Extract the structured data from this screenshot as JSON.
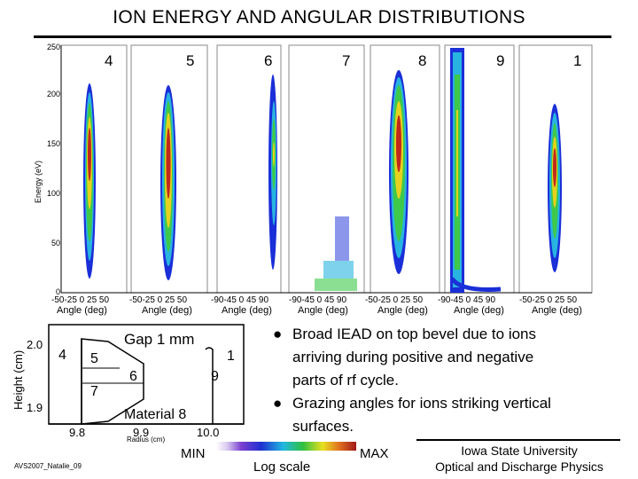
{
  "title": "ION ENERGY AND ANGULAR DISTRIBUTIONS",
  "iead_plot": {
    "y_axis_label": "Energy (eV)",
    "y_ticks": [
      "250",
      "200",
      "150",
      "100",
      "50",
      "0"
    ],
    "panel_labels": [
      "4",
      "5",
      "6",
      "7",
      "8",
      "9",
      "1"
    ],
    "x_tick_rows": [
      "-50-25  0  25  50",
      "-50-25  0  25  50",
      "-90-45  0  45  90",
      "-90-45  0  45  90",
      "-50-25  0  25  50",
      "-90-45  0  45  90",
      "-50-25  0  25  50"
    ],
    "x_axis_label": "Angle (deg)"
  },
  "geometry_plot": {
    "y_axis_label": "Height (cm)",
    "y_ticks": [
      "2.0",
      "1.9"
    ],
    "x_ticks": [
      "9.8",
      "9.9",
      "10.0"
    ],
    "x_axis_label": "Radius (cm)",
    "gap_label": "Gap 1 mm",
    "material_label": "Material 8",
    "region_labels": [
      "4",
      "5",
      "6",
      "7",
      "1",
      "9"
    ]
  },
  "bullets": [
    [
      "Broad IEAD on top bevel due to ions",
      "arriving during positive and negative",
      "parts of rf cycle."
    ],
    [
      "Grazing angles for ions striking vertical",
      "surfaces."
    ]
  ],
  "colorbar": {
    "min_label": "MIN",
    "max_label": "MAX",
    "scale_label": "Log scale"
  },
  "footer": {
    "credit": "AVS2007_Natalie_09",
    "institution_line1": "Iowa State University",
    "institution_line2": "Optical and Discharge Physics"
  }
}
